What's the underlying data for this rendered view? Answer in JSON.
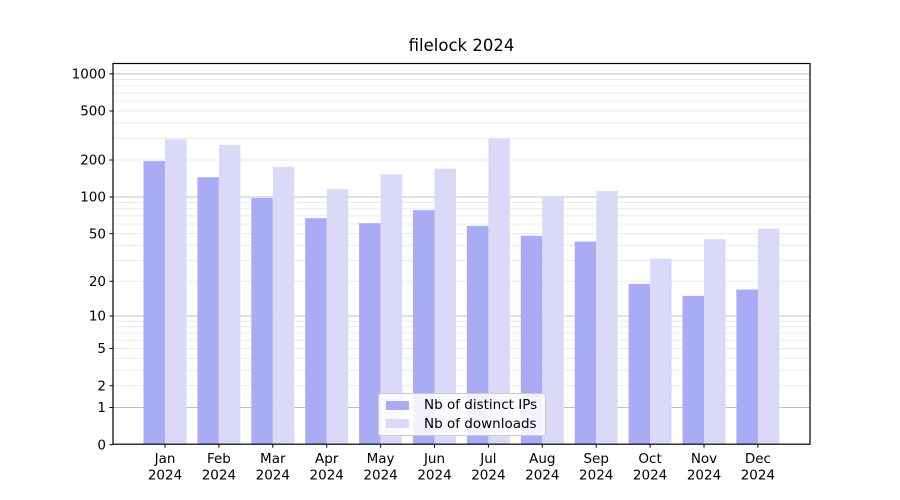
{
  "chart_data": {
    "type": "bar",
    "title": "filelock 2024",
    "categories": [
      "Jan",
      "Feb",
      "Mar",
      "Apr",
      "May",
      "Jun",
      "Jul",
      "Aug",
      "Sep",
      "Oct",
      "Nov",
      "Dec"
    ],
    "category_year": "2024",
    "series": [
      {
        "name": "Nb of distinct IPs",
        "color": "#aaabf5",
        "values": [
          196,
          145,
          98,
          67,
          61,
          78,
          58,
          48,
          43,
          19,
          15,
          17
        ]
      },
      {
        "name": "Nb of downloads",
        "color": "#dadaf8",
        "values": [
          295,
          265,
          176,
          116,
          153,
          170,
          300,
          100,
          112,
          31,
          45,
          55
        ]
      }
    ],
    "yscale": "log10(1+x)",
    "ylim": [
      0,
      1200
    ],
    "yticks": [
      0,
      1,
      2,
      5,
      10,
      20,
      50,
      100,
      200,
      500,
      1000
    ],
    "ytick_labels": [
      "0",
      "1",
      "2",
      "5",
      "10",
      "20",
      "50",
      "100",
      "200",
      "500",
      "1000"
    ],
    "xlabel": "",
    "ylabel": "",
    "grid": "horizontal major+minor",
    "legend_position": "lower center",
    "colors": {
      "background": "#ffffff",
      "spine": "#000000",
      "major_grid": "#c0c0c0",
      "minor_grid": "#eaeaea",
      "tick_text": "#000000"
    }
  }
}
